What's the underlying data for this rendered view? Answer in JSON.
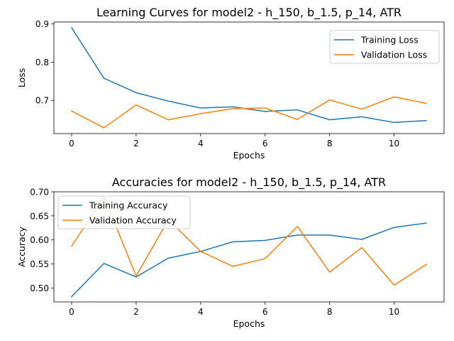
{
  "colors": {
    "training": "#1f77b4",
    "validation": "#ff7f0e"
  },
  "chart_data": [
    {
      "type": "line",
      "title": "Learning Curves for model2 - h_150, b_1.5, p_14, ATR",
      "xlabel": "Epochs",
      "ylabel": "Loss",
      "xlim": [
        -0.55,
        11.55
      ],
      "ylim": [
        0.613,
        0.905
      ],
      "xticks": [
        0,
        2,
        4,
        6,
        8,
        10
      ],
      "xtick_labels": [
        "0",
        "2",
        "4",
        "6",
        "8",
        "10"
      ],
      "yticks": [
        0.7,
        0.8,
        0.9
      ],
      "ytick_labels": [
        "0.7",
        "0.8",
        "0.9"
      ],
      "legend": "upper-right",
      "grid": false,
      "x": [
        0,
        1,
        2,
        3,
        4,
        5,
        6,
        7,
        8,
        9,
        10,
        11
      ],
      "series": [
        {
          "name": "Training Loss",
          "values": [
            0.89,
            0.758,
            0.72,
            0.698,
            0.68,
            0.683,
            0.671,
            0.675,
            0.649,
            0.657,
            0.642,
            0.647
          ]
        },
        {
          "name": "Validation Loss",
          "values": [
            0.672,
            0.628,
            0.688,
            0.649,
            0.665,
            0.678,
            0.68,
            0.65,
            0.701,
            0.677,
            0.709,
            0.692
          ]
        }
      ]
    },
    {
      "type": "line",
      "title": "Accuracies for model2 - h_150, b_1.5, p_14, ATR",
      "xlabel": "Epochs",
      "ylabel": "Accuracy",
      "xlim": [
        -0.55,
        11.55
      ],
      "ylim": [
        0.471,
        0.7
      ],
      "xticks": [
        0,
        2,
        4,
        6,
        8,
        10
      ],
      "xtick_labels": [
        "0",
        "2",
        "4",
        "6",
        "8",
        "10"
      ],
      "yticks": [
        0.5,
        0.55,
        0.6,
        0.65,
        0.7
      ],
      "ytick_labels": [
        "0.50",
        "0.55",
        "0.60",
        "0.65",
        "0.70"
      ],
      "legend": "upper-left",
      "grid": false,
      "x": [
        0,
        1,
        2,
        3,
        4,
        5,
        6,
        7,
        8,
        9,
        10,
        11
      ],
      "series": [
        {
          "name": "Training Accuracy",
          "values": [
            0.482,
            0.551,
            0.523,
            0.562,
            0.576,
            0.596,
            0.599,
            0.61,
            0.61,
            0.601,
            0.626,
            0.635
          ]
        },
        {
          "name": "Validation Accuracy",
          "values": [
            0.587,
            0.69,
            0.525,
            0.642,
            0.576,
            0.545,
            0.561,
            0.628,
            0.533,
            0.584,
            0.506,
            0.549
          ]
        }
      ]
    }
  ]
}
